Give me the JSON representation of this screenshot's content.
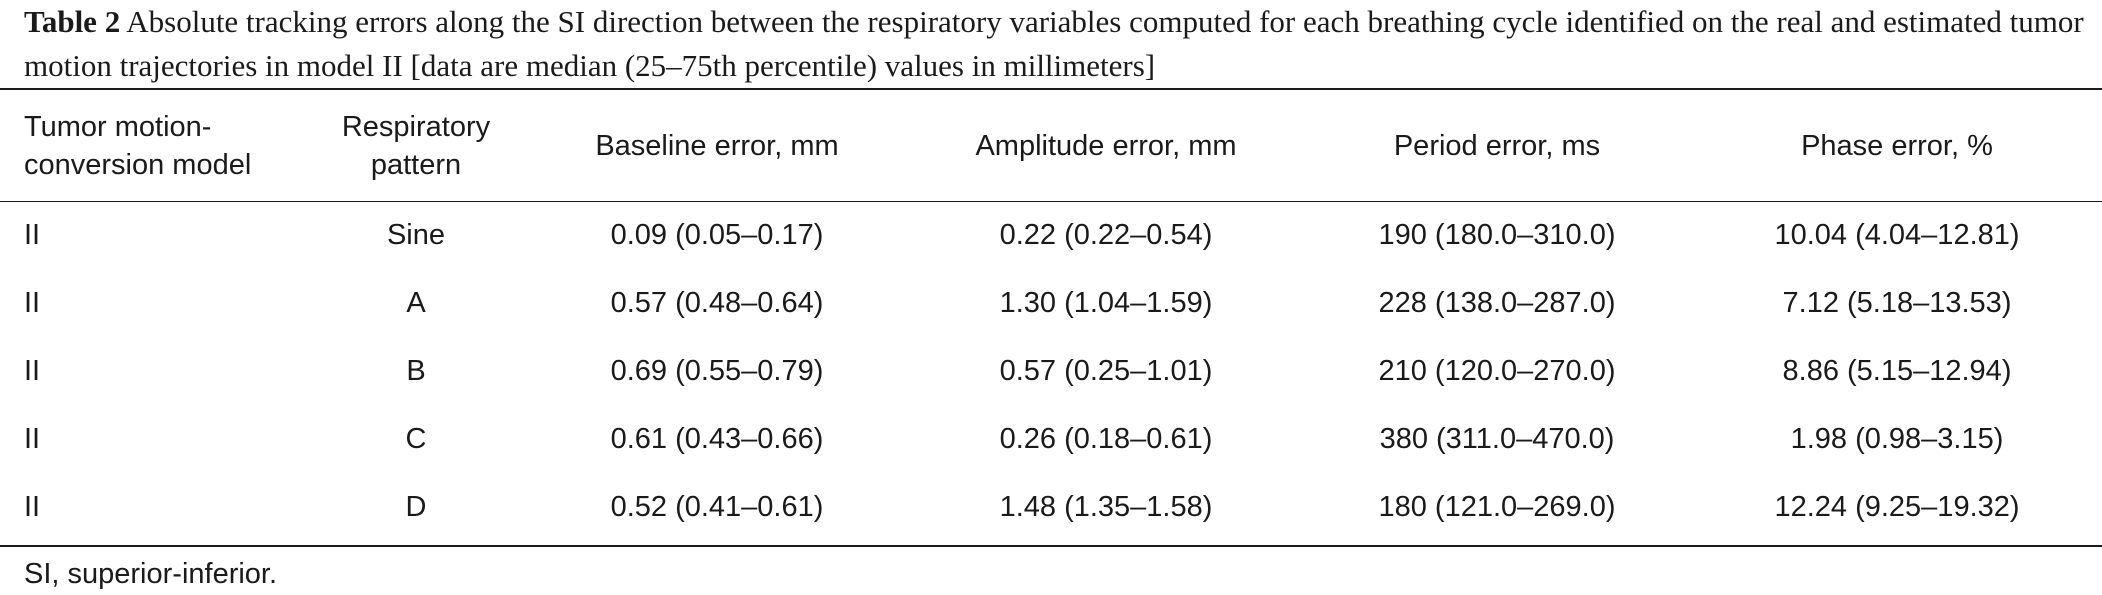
{
  "caption": {
    "label": "Table 2",
    "text": "Absolute tracking errors along the SI direction between the respiratory variables computed for each breathing cycle identified on the real and estimated tumor motion trajectories in model II [data are median (25–75th percentile) values in millimeters]"
  },
  "table": {
    "headers": [
      [
        "Tumor motion-",
        "conversion model"
      ],
      [
        "Respiratory",
        "pattern"
      ],
      [
        "Baseline error, mm"
      ],
      [
        "Amplitude error, mm"
      ],
      [
        "Period error, ms"
      ],
      [
        "Phase error, %"
      ]
    ],
    "rows": [
      [
        "II",
        "Sine",
        "0.09 (0.05–0.17)",
        "0.22 (0.22–0.54)",
        "190 (180.0–310.0)",
        "10.04 (4.04–12.81)"
      ],
      [
        "II",
        "A",
        "0.57 (0.48–0.64)",
        "1.30 (1.04–1.59)",
        "228 (138.0–287.0)",
        "7.12 (5.18–13.53)"
      ],
      [
        "II",
        "B",
        "0.69 (0.55–0.79)",
        "0.57 (0.25–1.01)",
        "210 (120.0–270.0)",
        "8.86 (5.15–12.94)"
      ],
      [
        "II",
        "C",
        "0.61 (0.43–0.66)",
        "0.26 (0.18–0.61)",
        "380 (311.0–470.0)",
        "1.98 (0.98–3.15)"
      ],
      [
        "II",
        "D",
        "0.52 (0.41–0.61)",
        "1.48 (1.35–1.58)",
        "180 (121.0–269.0)",
        "12.24 (9.25–19.32)"
      ]
    ]
  },
  "footnote": "SI, superior-inferior."
}
